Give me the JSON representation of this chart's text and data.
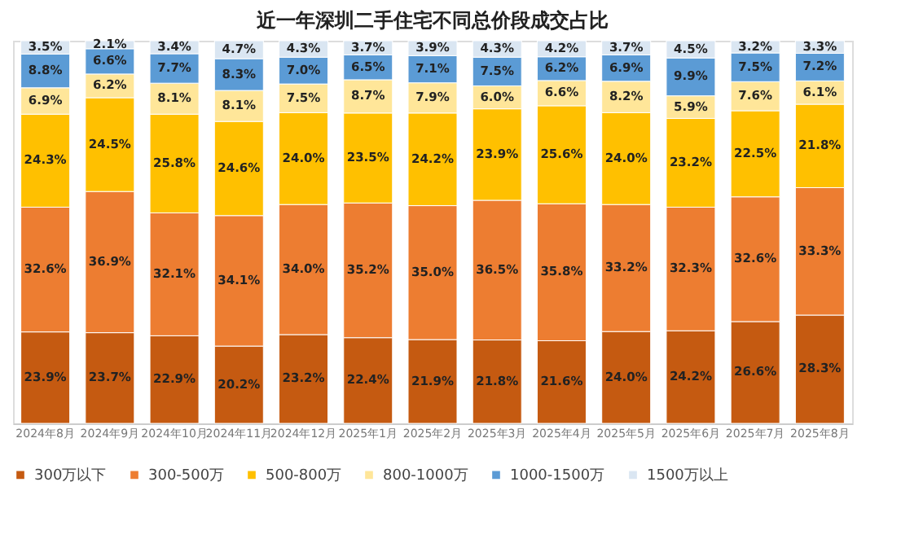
{
  "chart_data": {
    "type": "bar",
    "stacked": true,
    "title": "近一年深圳二手住宅不同总价段成交占比",
    "categories": [
      "2024年8月",
      "2024年9月",
      "2024年10月",
      "2024年11月",
      "2024年12月",
      "2025年1月",
      "2025年2月",
      "2025年3月",
      "2025年4月",
      "2025年5月",
      "2025年6月",
      "2025年7月",
      "2025年8月"
    ],
    "series": [
      {
        "name": "300万以下",
        "color": "#c55a11",
        "values": [
          23.9,
          23.7,
          22.9,
          20.2,
          23.2,
          22.4,
          21.9,
          21.8,
          21.6,
          24.0,
          24.2,
          26.6,
          28.3
        ],
        "value_labels": [
          "23.9%",
          "23.7%",
          "22.9%",
          "20.2%",
          "23.2%",
          "22.4%",
          "21.9%",
          "21.8%",
          "21.6%",
          "24.0%",
          "24.2%",
          "26.6%",
          "28.3%"
        ]
      },
      {
        "name": "300-500万",
        "color": "#ed7d31",
        "values": [
          32.6,
          36.9,
          32.1,
          34.1,
          34.0,
          35.2,
          35.0,
          36.5,
          35.8,
          33.2,
          32.3,
          32.6,
          33.3
        ],
        "value_labels": [
          "32.6%",
          "36.9%",
          "32.1%",
          "34.1%",
          "34.0%",
          "35.2%",
          "35.0%",
          "36.5%",
          "35.8%",
          "33.2%",
          "32.3%",
          "32.6%",
          "33.3%"
        ]
      },
      {
        "name": "500-800万",
        "color": "#ffc000",
        "values": [
          24.3,
          24.5,
          25.8,
          24.6,
          24.0,
          23.5,
          24.2,
          23.9,
          25.6,
          24.0,
          23.2,
          22.5,
          21.8
        ],
        "value_labels": [
          "24.3%",
          "24.5%",
          "25.8%",
          "24.6%",
          "24.0%",
          "23.5%",
          "24.2%",
          "23.9%",
          "25.6%",
          "24.0%",
          "23.2%",
          "22.5%",
          "21.8%"
        ]
      },
      {
        "name": "800-1000万",
        "color": "#ffe699",
        "values": [
          6.9,
          6.2,
          8.1,
          8.1,
          7.5,
          8.7,
          7.9,
          6.0,
          6.6,
          8.2,
          5.9,
          7.6,
          6.1
        ],
        "value_labels": [
          "6.9%",
          "6.2%",
          "8.1%",
          "8.1%",
          "7.5%",
          "8.7%",
          "7.9%",
          "6.0%",
          "6.6%",
          "8.2%",
          "5.9%",
          "7.6%",
          "6.1%"
        ]
      },
      {
        "name": "1000-1500万",
        "color": "#5b9bd5",
        "values": [
          8.8,
          6.6,
          7.7,
          8.3,
          7.0,
          6.5,
          7.1,
          7.5,
          6.2,
          6.9,
          9.9,
          7.5,
          7.2
        ],
        "value_labels": [
          "8.8%",
          "6.6%",
          "7.7%",
          "8.3%",
          "7.0%",
          "6.5%",
          "7.1%",
          "7.5%",
          "6.2%",
          "6.9%",
          "9.9%",
          "7.5%",
          "7.2%"
        ]
      },
      {
        "name": "1500万以上",
        "color": "#dae6f2",
        "values": [
          3.5,
          2.1,
          3.4,
          4.7,
          4.3,
          3.7,
          3.9,
          4.3,
          4.2,
          3.7,
          4.5,
          3.2,
          3.3
        ],
        "value_labels": [
          "3.5%",
          "2.1%",
          "3.4%",
          "4.7%",
          "4.3%",
          "3.7%",
          "3.9%",
          "4.3%",
          "4.2%",
          "3.7%",
          "4.5%",
          "3.2%",
          "3.3%"
        ]
      }
    ],
    "legend": "bottom",
    "tick_labels": "x"
  }
}
